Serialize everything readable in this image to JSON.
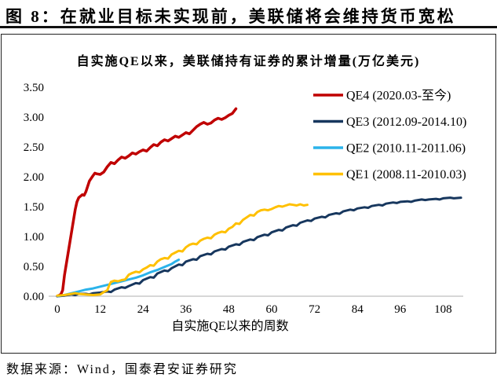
{
  "page": {
    "figure_title": "图 8：在就业目标未实现前，美联储将会维持货币宽松",
    "source_note": "数据来源：Wind，国泰君安证券研究"
  },
  "chart_data": {
    "type": "line",
    "title": "自实施QE以来，美联储持有证券的累计增量(万亿美元)",
    "xlabel": "自实施QE以来的周数",
    "ylabel": "",
    "xlim": [
      0,
      116
    ],
    "ylim": [
      0,
      3.5
    ],
    "xticks": [
      0,
      12,
      24,
      36,
      48,
      60,
      72,
      84,
      96,
      108
    ],
    "yticks": [
      "0.00",
      "0.50",
      "1.00",
      "1.50",
      "2.00",
      "2.50",
      "3.00",
      "3.50"
    ],
    "grid": false,
    "legend_position": "upper right",
    "axis_line_color": "#BFBFBF",
    "series": [
      {
        "name": "QE4 (2020.03-至今)",
        "id": "qe4",
        "color": "#C00000",
        "width": 3.5,
        "points": [
          [
            0,
            0.0
          ],
          [
            1,
            0.03
          ],
          [
            1.5,
            0.1
          ],
          [
            2,
            0.35
          ],
          [
            3,
            0.72
          ],
          [
            4,
            1.08
          ],
          [
            5,
            1.45
          ],
          [
            5.5,
            1.58
          ],
          [
            6,
            1.65
          ],
          [
            7,
            1.7
          ],
          [
            7.5,
            1.69
          ],
          [
            8,
            1.75
          ],
          [
            9,
            1.93
          ],
          [
            10,
            2.02
          ],
          [
            10.5,
            2.06
          ],
          [
            11,
            2.05
          ],
          [
            12,
            2.04
          ],
          [
            13,
            2.08
          ],
          [
            14,
            2.17
          ],
          [
            15,
            2.24
          ],
          [
            16,
            2.22
          ],
          [
            17,
            2.28
          ],
          [
            18,
            2.33
          ],
          [
            19,
            2.31
          ],
          [
            20,
            2.35
          ],
          [
            21,
            2.4
          ],
          [
            22,
            2.38
          ],
          [
            23,
            2.42
          ],
          [
            24,
            2.45
          ],
          [
            25,
            2.43
          ],
          [
            26,
            2.49
          ],
          [
            27,
            2.54
          ],
          [
            28,
            2.52
          ],
          [
            29,
            2.58
          ],
          [
            30,
            2.62
          ],
          [
            31,
            2.6
          ],
          [
            32,
            2.64
          ],
          [
            33,
            2.68
          ],
          [
            34,
            2.66
          ],
          [
            35,
            2.7
          ],
          [
            36,
            2.74
          ],
          [
            37,
            2.72
          ],
          [
            38,
            2.78
          ],
          [
            39,
            2.84
          ],
          [
            40,
            2.88
          ],
          [
            41,
            2.91
          ],
          [
            42,
            2.88
          ],
          [
            43,
            2.9
          ],
          [
            44,
            2.95
          ],
          [
            45,
            2.98
          ],
          [
            46,
            2.96
          ],
          [
            47,
            2.99
          ],
          [
            48,
            3.03
          ],
          [
            49,
            3.06
          ],
          [
            50,
            3.14
          ]
        ]
      },
      {
        "name": "QE3 (2012.09-2014.10)",
        "id": "qe3",
        "color": "#17375E",
        "width": 3,
        "points": [
          [
            0,
            0.0
          ],
          [
            2,
            0.01
          ],
          [
            4,
            0.03
          ],
          [
            5,
            0.02
          ],
          [
            6,
            0.04
          ],
          [
            8,
            0.04
          ],
          [
            9,
            0.03
          ],
          [
            10,
            0.05
          ],
          [
            12,
            0.06
          ],
          [
            14,
            0.08
          ],
          [
            15,
            0.07
          ],
          [
            16,
            0.11
          ],
          [
            18,
            0.15
          ],
          [
            19,
            0.14
          ],
          [
            20,
            0.17
          ],
          [
            22,
            0.22
          ],
          [
            23,
            0.21
          ],
          [
            24,
            0.27
          ],
          [
            26,
            0.32
          ],
          [
            27,
            0.31
          ],
          [
            28,
            0.38
          ],
          [
            30,
            0.43
          ],
          [
            31,
            0.42
          ],
          [
            32,
            0.47
          ],
          [
            34,
            0.53
          ],
          [
            35,
            0.52
          ],
          [
            36,
            0.58
          ],
          [
            38,
            0.62
          ],
          [
            39,
            0.61
          ],
          [
            40,
            0.67
          ],
          [
            42,
            0.71
          ],
          [
            43,
            0.7
          ],
          [
            44,
            0.75
          ],
          [
            46,
            0.79
          ],
          [
            47,
            0.78
          ],
          [
            48,
            0.83
          ],
          [
            50,
            0.87
          ],
          [
            51,
            0.86
          ],
          [
            52,
            0.91
          ],
          [
            54,
            0.95
          ],
          [
            55,
            0.94
          ],
          [
            56,
            0.99
          ],
          [
            58,
            1.03
          ],
          [
            59,
            1.02
          ],
          [
            60,
            1.07
          ],
          [
            62,
            1.11
          ],
          [
            63,
            1.1
          ],
          [
            64,
            1.15
          ],
          [
            66,
            1.19
          ],
          [
            67,
            1.18
          ],
          [
            68,
            1.23
          ],
          [
            70,
            1.27
          ],
          [
            71,
            1.26
          ],
          [
            72,
            1.3
          ],
          [
            74,
            1.33
          ],
          [
            75,
            1.32
          ],
          [
            76,
            1.36
          ],
          [
            78,
            1.39
          ],
          [
            79,
            1.38
          ],
          [
            80,
            1.42
          ],
          [
            82,
            1.45
          ],
          [
            83,
            1.44
          ],
          [
            84,
            1.47
          ],
          [
            86,
            1.49
          ],
          [
            87,
            1.48
          ],
          [
            88,
            1.51
          ],
          [
            90,
            1.53
          ],
          [
            91,
            1.52
          ],
          [
            92,
            1.55
          ],
          [
            94,
            1.57
          ],
          [
            95,
            1.56
          ],
          [
            96,
            1.58
          ],
          [
            98,
            1.59
          ],
          [
            99,
            1.58
          ],
          [
            100,
            1.6
          ],
          [
            102,
            1.62
          ],
          [
            103,
            1.61
          ],
          [
            104,
            1.62
          ],
          [
            106,
            1.63
          ],
          [
            107,
            1.62
          ],
          [
            108,
            1.64
          ],
          [
            110,
            1.65
          ],
          [
            111,
            1.64
          ],
          [
            113,
            1.65
          ]
        ]
      },
      {
        "name": "QE2 (2010.11-2011.06)",
        "id": "qe2",
        "color": "#2BB3EA",
        "width": 3,
        "points": [
          [
            0,
            0.0
          ],
          [
            1,
            0.01
          ],
          [
            2,
            0.02
          ],
          [
            4,
            0.05
          ],
          [
            6,
            0.08
          ],
          [
            8,
            0.11
          ],
          [
            10,
            0.13
          ],
          [
            12,
            0.16
          ],
          [
            14,
            0.19
          ],
          [
            16,
            0.22
          ],
          [
            18,
            0.25
          ],
          [
            20,
            0.28
          ],
          [
            22,
            0.31
          ],
          [
            24,
            0.35
          ],
          [
            26,
            0.4
          ],
          [
            28,
            0.44
          ],
          [
            30,
            0.49
          ],
          [
            32,
            0.54
          ],
          [
            33,
            0.58
          ],
          [
            34,
            0.61
          ]
        ]
      },
      {
        "name": "QE1 (2008.11-2010.03)",
        "id": "qe1",
        "color": "#FFC000",
        "width": 3,
        "points": [
          [
            0,
            0.01
          ],
          [
            2,
            0.02
          ],
          [
            4,
            0.04
          ],
          [
            5,
            0.05
          ],
          [
            6,
            0.04
          ],
          [
            8,
            0.03
          ],
          [
            10,
            0.02
          ],
          [
            12,
            0.03
          ],
          [
            13,
            0.07
          ],
          [
            14,
            0.1
          ],
          [
            14.5,
            0.18
          ],
          [
            15,
            0.24
          ],
          [
            16,
            0.26
          ],
          [
            17,
            0.25
          ],
          [
            18,
            0.27
          ],
          [
            19,
            0.28
          ],
          [
            20,
            0.36
          ],
          [
            21,
            0.39
          ],
          [
            22,
            0.41
          ],
          [
            23,
            0.4
          ],
          [
            24,
            0.45
          ],
          [
            25,
            0.48
          ],
          [
            26,
            0.52
          ],
          [
            27,
            0.51
          ],
          [
            28,
            0.58
          ],
          [
            29,
            0.62
          ],
          [
            30,
            0.64
          ],
          [
            31,
            0.63
          ],
          [
            32,
            0.7
          ],
          [
            33,
            0.73
          ],
          [
            34,
            0.76
          ],
          [
            35,
            0.75
          ],
          [
            36,
            0.82
          ],
          [
            37,
            0.86
          ],
          [
            38,
            0.88
          ],
          [
            39,
            0.87
          ],
          [
            40,
            0.93
          ],
          [
            41,
            0.96
          ],
          [
            42,
            0.98
          ],
          [
            43,
            0.97
          ],
          [
            44,
            1.03
          ],
          [
            45,
            1.06
          ],
          [
            46,
            1.08
          ],
          [
            47,
            1.07
          ],
          [
            48,
            1.13
          ],
          [
            49,
            1.16
          ],
          [
            50,
            1.22
          ],
          [
            51,
            1.21
          ],
          [
            52,
            1.28
          ],
          [
            53,
            1.32
          ],
          [
            54,
            1.36
          ],
          [
            55,
            1.35
          ],
          [
            56,
            1.41
          ],
          [
            57,
            1.44
          ],
          [
            58,
            1.45
          ],
          [
            59,
            1.44
          ],
          [
            60,
            1.46
          ],
          [
            61,
            1.49
          ],
          [
            62,
            1.51
          ],
          [
            63,
            1.5
          ],
          [
            64,
            1.52
          ],
          [
            65,
            1.54
          ],
          [
            66,
            1.53
          ],
          [
            67,
            1.52
          ],
          [
            68,
            1.54
          ],
          [
            69,
            1.52
          ],
          [
            70,
            1.53
          ]
        ]
      }
    ]
  }
}
